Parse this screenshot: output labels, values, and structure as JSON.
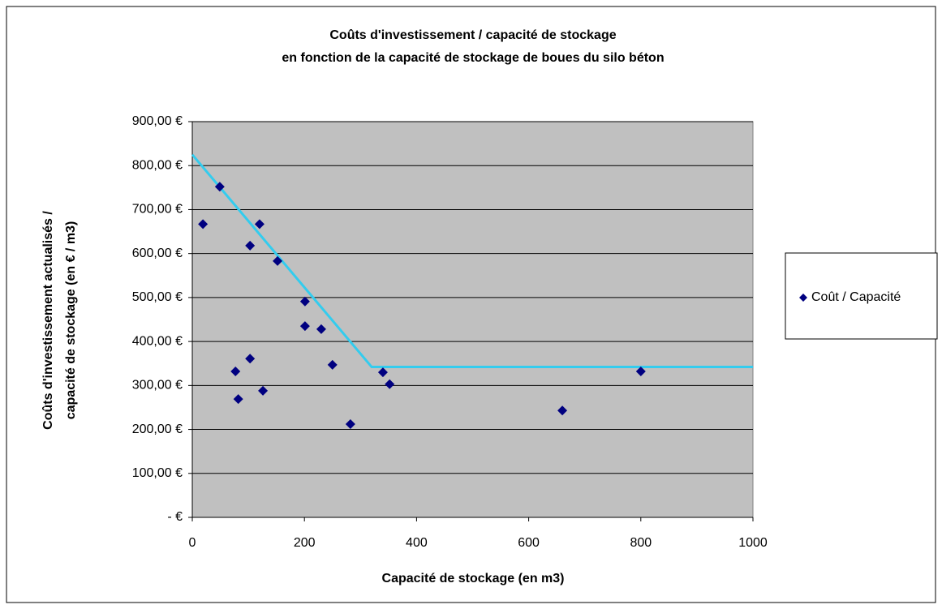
{
  "chart_data": {
    "type": "scatter",
    "title": [
      "Coûts d'investissement / capacité de stockage",
      "en fonction de la capacité de stockage de boues du silo béton"
    ],
    "x_label": "Capacité de stockage (en m3)",
    "y_label": [
      "Coûts d'investissement actualisés /",
      "capacité de stockage (en € / m3)"
    ],
    "series": [
      {
        "name": "Coût / Capacité",
        "color": "#000080",
        "x": [
          19,
          49,
          103,
          120,
          152,
          201,
          201,
          230,
          77,
          103,
          82,
          126,
          250,
          282,
          340,
          352,
          660,
          800
        ],
        "values": [
          667,
          752,
          618,
          667,
          583,
          491,
          435,
          428,
          332,
          361,
          269,
          288,
          347,
          212,
          330,
          303,
          243,
          332
        ]
      }
    ],
    "trendline": {
      "color": "#33ccee",
      "x": [
        0,
        320,
        1000
      ],
      "values": [
        825,
        342,
        342
      ]
    },
    "xlim": [
      0,
      1000
    ],
    "xticks": [
      0,
      200,
      400,
      600,
      800,
      1000
    ],
    "ylim": [
      0,
      900
    ],
    "yticks": [
      {
        "value": 0,
        "label": "-   €"
      },
      {
        "value": 100,
        "label": "100,00 €"
      },
      {
        "value": 200,
        "label": "200,00 €"
      },
      {
        "value": 300,
        "label": "300,00 €"
      },
      {
        "value": 400,
        "label": "400,00 €"
      },
      {
        "value": 500,
        "label": "500,00 €"
      },
      {
        "value": 600,
        "label": "600,00 €"
      },
      {
        "value": 700,
        "label": "700,00 €"
      },
      {
        "value": 800,
        "label": "800,00 €"
      },
      {
        "value": 900,
        "label": "900,00 €"
      }
    ],
    "grid": true,
    "legend": "right"
  }
}
